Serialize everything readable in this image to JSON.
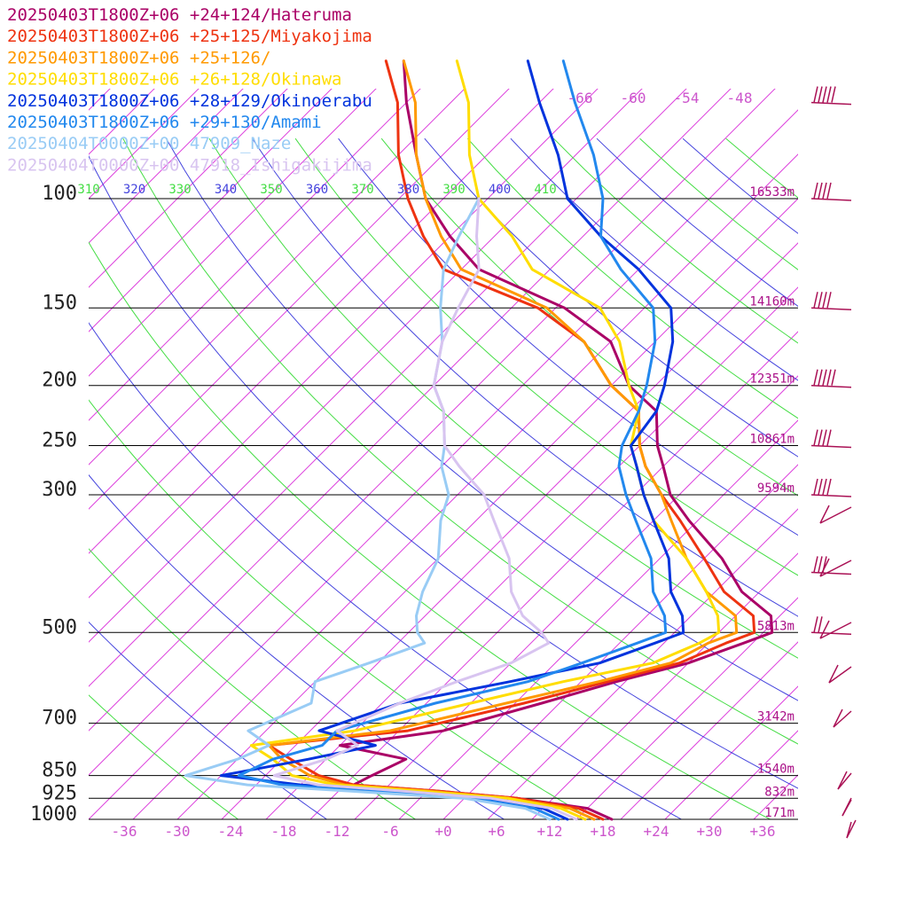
{
  "chart_data": {
    "type": "skew-t",
    "title": "",
    "legend": [
      {
        "text": "20250403T1800Z+06 +24+124/Hateruma",
        "color": "#aa0066"
      },
      {
        "text": "20250403T1800Z+06 +25+125/Miyakojima",
        "color": "#ee3311"
      },
      {
        "text": "20250403T1800Z+06 +25+126/",
        "color": "#ff9900"
      },
      {
        "text": "20250403T1800Z+06 +26+128/Okinawa",
        "color": "#ffdd00"
      },
      {
        "text": "20250403T1800Z+06 +28+129/Okinoerabu",
        "color": "#0033dd"
      },
      {
        "text": "20250403T1800Z+06 +29+130/Amami",
        "color": "#2288ee"
      },
      {
        "text": "20250404T0000Z+00 47909_Naze",
        "color": "#99ccf5"
      },
      {
        "text": "20250404T0000Z+00 47918_Ishigakijima",
        "color": "#d8c4f0"
      }
    ],
    "pressure_levels": [
      "100",
      "150",
      "200",
      "250",
      "300",
      "500",
      "700",
      "850",
      "925",
      "1000"
    ],
    "height_labels": [
      {
        "p": 100,
        "text": "16533m"
      },
      {
        "p": 150,
        "text": "14160m"
      },
      {
        "p": 200,
        "text": "12351m"
      },
      {
        "p": 250,
        "text": "10861m"
      },
      {
        "p": 300,
        "text": "9594m"
      },
      {
        "p": 500,
        "text": "5813m"
      },
      {
        "p": 700,
        "text": "3142m"
      },
      {
        "p": 850,
        "text": "1540m"
      },
      {
        "p": 925,
        "text": "832m"
      },
      {
        "p": 1000,
        "text": "171m"
      }
    ],
    "temperature_ticks": [
      "-36",
      "-30",
      "-24",
      "-18",
      "-12",
      "-6",
      "+0",
      "+6",
      "+12",
      "+18",
      "+24",
      "+30",
      "+36"
    ],
    "upper_temp_labels": [
      "-66",
      "-60",
      "-54",
      "-48"
    ],
    "theta_labels": [
      {
        "text": "310",
        "color": "#44dd44"
      },
      {
        "text": "320",
        "color": "#4444dd"
      },
      {
        "text": "330",
        "color": "#44dd44"
      },
      {
        "text": "340",
        "color": "#4444dd"
      },
      {
        "text": "350",
        "color": "#44dd44"
      },
      {
        "text": "360",
        "color": "#4444dd"
      },
      {
        "text": "370",
        "color": "#44dd44"
      },
      {
        "text": "380",
        "color": "#4444dd"
      },
      {
        "text": "390",
        "color": "#44dd44"
      },
      {
        "text": "400",
        "color": "#4444dd"
      },
      {
        "text": "410",
        "color": "#44dd44"
      }
    ],
    "ranges": {
      "pressure_hPa": [
        100,
        1000
      ],
      "temperature_C_at_1000hPa": [
        -40,
        40
      ]
    },
    "series": [
      {
        "color": "#aa0066",
        "points": [
          [
            1000,
            19
          ],
          [
            960,
            15
          ],
          [
            925,
            6
          ],
          [
            900,
            -4
          ],
          [
            880,
            -14
          ],
          [
            850,
            -13
          ],
          [
            800,
            -11
          ],
          [
            760,
            -20
          ],
          [
            720,
            -10
          ],
          [
            650,
            -2
          ],
          [
            600,
            4
          ],
          [
            560,
            10
          ],
          [
            520,
            14
          ],
          [
            500,
            16
          ],
          [
            470,
            14
          ],
          [
            430,
            8
          ],
          [
            380,
            2
          ],
          [
            330,
            -6
          ],
          [
            300,
            -11
          ],
          [
            270,
            -15
          ],
          [
            250,
            -18
          ],
          [
            220,
            -22
          ],
          [
            200,
            -28
          ],
          [
            170,
            -35
          ],
          [
            150,
            -44
          ],
          [
            130,
            -58
          ],
          [
            115,
            -65
          ],
          [
            100,
            -72
          ],
          [
            85,
            -78
          ],
          [
            70,
            -85
          ],
          [
            60,
            -90
          ]
        ]
      },
      {
        "color": "#ee3311",
        "points": [
          [
            1000,
            18
          ],
          [
            960,
            14
          ],
          [
            925,
            6
          ],
          [
            900,
            -4
          ],
          [
            880,
            -14
          ],
          [
            850,
            -19
          ],
          [
            800,
            -24
          ],
          [
            760,
            -28
          ],
          [
            720,
            -14
          ],
          [
            650,
            -4
          ],
          [
            600,
            3
          ],
          [
            560,
            9
          ],
          [
            520,
            12
          ],
          [
            500,
            14
          ],
          [
            470,
            12
          ],
          [
            430,
            6
          ],
          [
            380,
            0
          ],
          [
            330,
            -7
          ],
          [
            300,
            -12
          ],
          [
            270,
            -17
          ],
          [
            250,
            -20
          ],
          [
            220,
            -24
          ],
          [
            200,
            -30
          ],
          [
            170,
            -38
          ],
          [
            150,
            -47
          ],
          [
            130,
            -62
          ],
          [
            115,
            -68
          ],
          [
            100,
            -74
          ],
          [
            85,
            -80
          ],
          [
            70,
            -86
          ],
          [
            60,
            -92
          ]
        ]
      },
      {
        "color": "#ff9900",
        "points": [
          [
            1000,
            17
          ],
          [
            960,
            13
          ],
          [
            925,
            5
          ],
          [
            900,
            -5
          ],
          [
            880,
            -15
          ],
          [
            850,
            -20
          ],
          [
            800,
            -25
          ],
          [
            760,
            -28
          ],
          [
            720,
            -16
          ],
          [
            650,
            -6
          ],
          [
            600,
            2
          ],
          [
            560,
            8
          ],
          [
            520,
            10
          ],
          [
            500,
            12
          ],
          [
            470,
            10
          ],
          [
            430,
            4
          ],
          [
            380,
            -2
          ],
          [
            330,
            -8
          ],
          [
            300,
            -12
          ],
          [
            270,
            -17
          ],
          [
            250,
            -20
          ],
          [
            220,
            -24
          ],
          [
            200,
            -30
          ],
          [
            170,
            -38
          ],
          [
            150,
            -46
          ],
          [
            130,
            -60
          ],
          [
            115,
            -66
          ],
          [
            100,
            -72
          ],
          [
            85,
            -78
          ],
          [
            70,
            -84
          ],
          [
            60,
            -90
          ]
        ]
      },
      {
        "color": "#ffdd00",
        "points": [
          [
            1000,
            16
          ],
          [
            960,
            12
          ],
          [
            925,
            5
          ],
          [
            900,
            -6
          ],
          [
            880,
            -16
          ],
          [
            850,
            -22
          ],
          [
            800,
            -26
          ],
          [
            760,
            -30
          ],
          [
            720,
            -20
          ],
          [
            650,
            -10
          ],
          [
            600,
            -2
          ],
          [
            560,
            6
          ],
          [
            520,
            9
          ],
          [
            500,
            10
          ],
          [
            470,
            8
          ],
          [
            430,
            4
          ],
          [
            380,
            -2
          ],
          [
            330,
            -10
          ],
          [
            300,
            -14
          ],
          [
            270,
            -18
          ],
          [
            250,
            -21
          ],
          [
            220,
            -24
          ],
          [
            200,
            -28
          ],
          [
            170,
            -34
          ],
          [
            150,
            -40
          ],
          [
            130,
            -52
          ],
          [
            115,
            -58
          ],
          [
            100,
            -66
          ],
          [
            85,
            -72
          ],
          [
            70,
            -78
          ],
          [
            60,
            -84
          ]
        ]
      },
      {
        "color": "#0033dd",
        "points": [
          [
            1000,
            14
          ],
          [
            960,
            10
          ],
          [
            925,
            2
          ],
          [
            900,
            -10
          ],
          [
            880,
            -20
          ],
          [
            850,
            -30
          ],
          [
            800,
            -22
          ],
          [
            760,
            -16
          ],
          [
            720,
            -24
          ],
          [
            650,
            -18
          ],
          [
            600,
            -8
          ],
          [
            560,
            0
          ],
          [
            520,
            4
          ],
          [
            500,
            6
          ],
          [
            470,
            4
          ],
          [
            430,
            0
          ],
          [
            380,
            -4
          ],
          [
            330,
            -10
          ],
          [
            300,
            -14
          ],
          [
            270,
            -18
          ],
          [
            250,
            -21
          ],
          [
            220,
            -22
          ],
          [
            200,
            -24
          ],
          [
            170,
            -28
          ],
          [
            150,
            -32
          ],
          [
            130,
            -40
          ],
          [
            115,
            -48
          ],
          [
            100,
            -56
          ],
          [
            85,
            -62
          ],
          [
            70,
            -70
          ],
          [
            60,
            -76
          ]
        ]
      },
      {
        "color": "#2288ee",
        "points": [
          [
            1000,
            13
          ],
          [
            960,
            9
          ],
          [
            925,
            1
          ],
          [
            900,
            -12
          ],
          [
            880,
            -22
          ],
          [
            850,
            -28
          ],
          [
            800,
            -26
          ],
          [
            760,
            -22
          ],
          [
            720,
            -22
          ],
          [
            650,
            -14
          ],
          [
            600,
            -6
          ],
          [
            560,
            -2
          ],
          [
            520,
            2
          ],
          [
            500,
            4
          ],
          [
            470,
            2
          ],
          [
            430,
            -2
          ],
          [
            380,
            -6
          ],
          [
            330,
            -12
          ],
          [
            300,
            -16
          ],
          [
            270,
            -20
          ],
          [
            250,
            -22
          ],
          [
            220,
            -24
          ],
          [
            200,
            -26
          ],
          [
            170,
            -30
          ],
          [
            150,
            -34
          ],
          [
            130,
            -42
          ],
          [
            115,
            -48
          ],
          [
            100,
            -52
          ],
          [
            85,
            -58
          ],
          [
            70,
            -66
          ],
          [
            60,
            -72
          ]
        ]
      },
      {
        "color": "#99ccf5",
        "points": [
          [
            1000,
            12
          ],
          [
            960,
            8
          ],
          [
            925,
            0
          ],
          [
            900,
            -14
          ],
          [
            880,
            -26
          ],
          [
            850,
            -34
          ],
          [
            800,
            -30
          ],
          [
            760,
            -28
          ],
          [
            720,
            -32
          ],
          [
            650,
            -28
          ],
          [
            600,
            -30
          ],
          [
            560,
            -26
          ],
          [
            520,
            -22
          ],
          [
            500,
            -24
          ],
          [
            470,
            -26
          ],
          [
            430,
            -28
          ],
          [
            380,
            -30
          ],
          [
            330,
            -34
          ],
          [
            300,
            -36
          ],
          [
            270,
            -40
          ],
          [
            250,
            -42
          ],
          [
            220,
            -46
          ],
          [
            200,
            -50
          ],
          [
            170,
            -54
          ],
          [
            150,
            -58
          ],
          [
            130,
            -62
          ],
          [
            115,
            -64
          ],
          [
            100,
            -66
          ]
        ]
      },
      {
        "color": "#d8c4f0",
        "points": [
          [
            1000,
            15
          ],
          [
            960,
            11
          ],
          [
            925,
            3
          ],
          [
            900,
            -8
          ],
          [
            880,
            -18
          ],
          [
            850,
            -24
          ],
          [
            800,
            -20
          ],
          [
            760,
            -18
          ],
          [
            720,
            -22
          ],
          [
            650,
            -18
          ],
          [
            600,
            -14
          ],
          [
            560,
            -10
          ],
          [
            520,
            -8
          ],
          [
            500,
            -10
          ],
          [
            470,
            -14
          ],
          [
            430,
            -18
          ],
          [
            380,
            -22
          ],
          [
            330,
            -28
          ],
          [
            300,
            -32
          ],
          [
            270,
            -38
          ],
          [
            250,
            -42
          ],
          [
            220,
            -46
          ],
          [
            200,
            -50
          ],
          [
            170,
            -54
          ],
          [
            150,
            -56
          ],
          [
            130,
            -58
          ],
          [
            115,
            -62
          ],
          [
            100,
            -66
          ]
        ]
      }
    ]
  }
}
